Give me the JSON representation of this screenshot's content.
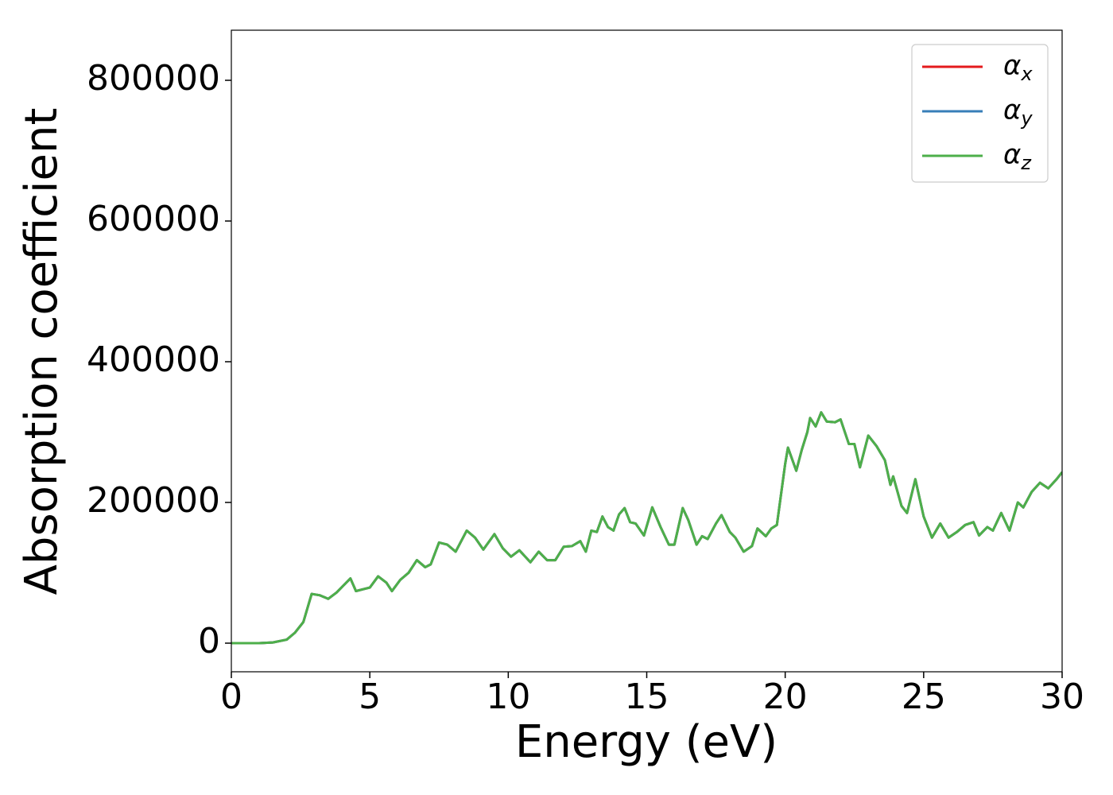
{
  "chart_data": {
    "type": "line",
    "xlabel": "Energy (eV)",
    "ylabel": "Absorption coefficient",
    "x": [
      0,
      1,
      1.5,
      2,
      2.3,
      2.6,
      2.9,
      3.2,
      3.5,
      3.8,
      4.0,
      4.3,
      4.5,
      4.8,
      5.0,
      5.3,
      5.6,
      5.8,
      6.1,
      6.4,
      6.7,
      7.0,
      7.2,
      7.5,
      7.8,
      8.1,
      8.5,
      8.8,
      9.1,
      9.5,
      9.8,
      10.1,
      10.4,
      10.8,
      11.1,
      11.4,
      11.7,
      12.0,
      12.3,
      12.6,
      12.8,
      13.0,
      13.2,
      13.4,
      13.6,
      13.8,
      14.0,
      14.2,
      14.4,
      14.6,
      14.9,
      15.2,
      15.5,
      15.8,
      16.0,
      16.3,
      16.5,
      16.8,
      17.0,
      17.2,
      17.5,
      17.7,
      18.0,
      18.2,
      18.5,
      18.8,
      19.0,
      19.3,
      19.5,
      19.7,
      20.0,
      20.1,
      20.4,
      20.6,
      20.8,
      20.9,
      21.1,
      21.3,
      21.5,
      21.8,
      22.0,
      22.3,
      22.5,
      22.7,
      23.0,
      23.3,
      23.6,
      23.8,
      23.9,
      24.2,
      24.4,
      24.7,
      25.0,
      25.3,
      25.6,
      25.9,
      26.2,
      26.5,
      26.8,
      27.0,
      27.3,
      27.5,
      27.8,
      28.1,
      28.4,
      28.6,
      28.9,
      29.2,
      29.5,
      29.8,
      30
    ],
    "series": [
      {
        "name": "αx",
        "color": "#e41a1c",
        "values": [
          0,
          0,
          1000,
          5000,
          15000,
          30000,
          70000,
          68000,
          63000,
          72000,
          80000,
          92000,
          74000,
          77000,
          79000,
          95000,
          86000,
          74000,
          90000,
          100000,
          118000,
          108000,
          112000,
          143000,
          140000,
          130000,
          160000,
          150000,
          133000,
          155000,
          135000,
          123000,
          132000,
          115000,
          130000,
          118000,
          118000,
          137000,
          138000,
          145000,
          130000,
          160000,
          158000,
          180000,
          165000,
          160000,
          183000,
          192000,
          172000,
          170000,
          153000,
          193000,
          165000,
          140000,
          140000,
          192000,
          175000,
          140000,
          152000,
          148000,
          170000,
          182000,
          158000,
          150000,
          130000,
          138000,
          163000,
          152000,
          163000,
          168000,
          255000,
          278000,
          245000,
          275000,
          300000,
          320000,
          308000,
          328000,
          315000,
          314000,
          318000,
          283000,
          283000,
          250000,
          295000,
          280000,
          260000,
          225000,
          237000,
          195000,
          185000,
          233000,
          180000,
          150000,
          170000,
          150000,
          158000,
          168000,
          172000,
          153000,
          165000,
          160000,
          185000,
          160000,
          200000,
          193000,
          215000,
          228000,
          220000,
          233000,
          243000
        ]
      },
      {
        "name": "αy",
        "color": "#377eb8",
        "values": [
          0,
          0,
          1000,
          5000,
          15000,
          30000,
          70000,
          68000,
          63000,
          72000,
          80000,
          92000,
          74000,
          77000,
          79000,
          95000,
          86000,
          74000,
          90000,
          100000,
          118000,
          108000,
          112000,
          143000,
          140000,
          130000,
          160000,
          150000,
          133000,
          155000,
          135000,
          123000,
          132000,
          115000,
          130000,
          118000,
          118000,
          137000,
          138000,
          145000,
          130000,
          160000,
          158000,
          180000,
          165000,
          160000,
          183000,
          192000,
          172000,
          170000,
          153000,
          193000,
          165000,
          140000,
          140000,
          192000,
          175000,
          140000,
          152000,
          148000,
          170000,
          182000,
          158000,
          150000,
          130000,
          138000,
          163000,
          152000,
          163000,
          168000,
          255000,
          278000,
          245000,
          275000,
          300000,
          320000,
          308000,
          328000,
          315000,
          314000,
          318000,
          283000,
          283000,
          250000,
          295000,
          280000,
          260000,
          225000,
          237000,
          195000,
          185000,
          233000,
          180000,
          150000,
          170000,
          150000,
          158000,
          168000,
          172000,
          153000,
          165000,
          160000,
          185000,
          160000,
          200000,
          193000,
          215000,
          228000,
          220000,
          233000,
          243000
        ]
      },
      {
        "name": "αz",
        "color": "#4daf4a",
        "values": [
          0,
          0,
          1000,
          5000,
          15000,
          30000,
          70000,
          68000,
          63000,
          72000,
          80000,
          92000,
          74000,
          77000,
          79000,
          95000,
          86000,
          74000,
          90000,
          100000,
          118000,
          108000,
          112000,
          143000,
          140000,
          130000,
          160000,
          150000,
          133000,
          155000,
          135000,
          123000,
          132000,
          115000,
          130000,
          118000,
          118000,
          137000,
          138000,
          145000,
          130000,
          160000,
          158000,
          180000,
          165000,
          160000,
          183000,
          192000,
          172000,
          170000,
          153000,
          193000,
          165000,
          140000,
          140000,
          192000,
          175000,
          140000,
          152000,
          148000,
          170000,
          182000,
          158000,
          150000,
          130000,
          138000,
          163000,
          152000,
          163000,
          168000,
          255000,
          278000,
          245000,
          275000,
          300000,
          320000,
          308000,
          328000,
          315000,
          314000,
          318000,
          283000,
          283000,
          250000,
          295000,
          280000,
          260000,
          225000,
          237000,
          195000,
          185000,
          233000,
          180000,
          150000,
          170000,
          150000,
          158000,
          168000,
          172000,
          153000,
          165000,
          160000,
          185000,
          160000,
          200000,
          193000,
          215000,
          228000,
          220000,
          233000,
          243000
        ]
      }
    ],
    "xlim": [
      0,
      30
    ],
    "xticks": [
      0,
      5,
      10,
      15,
      20,
      25,
      30
    ],
    "ylim": [
      -40680,
      871200
    ],
    "yticks": [
      0,
      200000,
      400000,
      600000,
      800000
    ],
    "grid": false,
    "legend": "upper right"
  }
}
